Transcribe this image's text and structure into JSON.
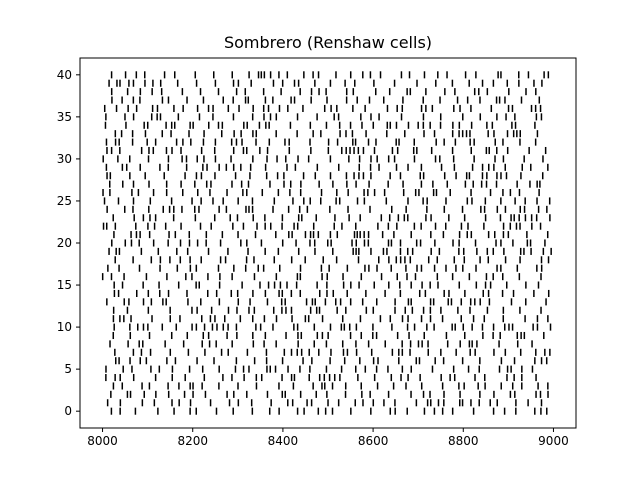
{
  "chart_data": {
    "type": "scatter",
    "marker": "vertical-line",
    "title": "Sombrero (Renshaw cells)",
    "xlabel": "",
    "ylabel": "",
    "xlim": [
      1950,
      1050
    ],
    "ylim": [
      -2,
      42
    ],
    "xticks": [
      8000,
      8200,
      8400,
      8600,
      8800,
      9000
    ],
    "yticks": [
      0,
      5,
      10,
      15,
      20,
      25,
      30,
      35,
      40
    ],
    "grid": false,
    "legend": "none",
    "neurons": 41,
    "t_start": 8000,
    "t_end": 9000,
    "mean_isi_ms": 20,
    "spike_color": "#000000"
  }
}
